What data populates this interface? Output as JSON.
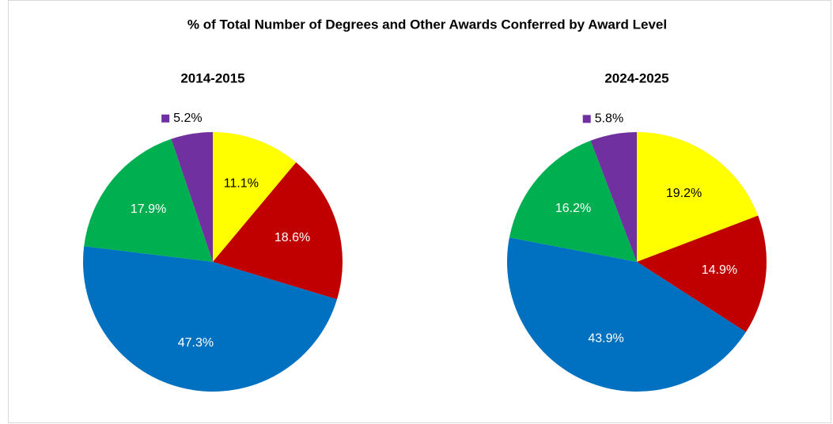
{
  "title": "% of Total Number of Degrees and Other Awards Conferred by Award Level",
  "chart_data": [
    {
      "type": "pie",
      "title": "2014-2015",
      "categories": [
        null,
        null,
        null,
        null,
        null
      ],
      "colors": [
        "#ffff00",
        "#c00000",
        "#0070c0",
        "#00b050",
        "#7030a0"
      ],
      "values": [
        11.1,
        18.6,
        47.3,
        17.9,
        5.2
      ],
      "value_labels": [
        "11.1%",
        "18.6%",
        "47.3%",
        "17.9%",
        "5.2%"
      ]
    },
    {
      "type": "pie",
      "title": "2024-2025",
      "categories": [
        null,
        null,
        null,
        null,
        null
      ],
      "colors": [
        "#ffff00",
        "#c00000",
        "#0070c0",
        "#00b050",
        "#7030a0"
      ],
      "values": [
        19.2,
        14.9,
        43.9,
        16.2,
        5.8
      ],
      "value_labels": [
        "19.2%",
        "14.9%",
        "43.9%",
        "16.2%",
        "5.8%"
      ]
    }
  ]
}
